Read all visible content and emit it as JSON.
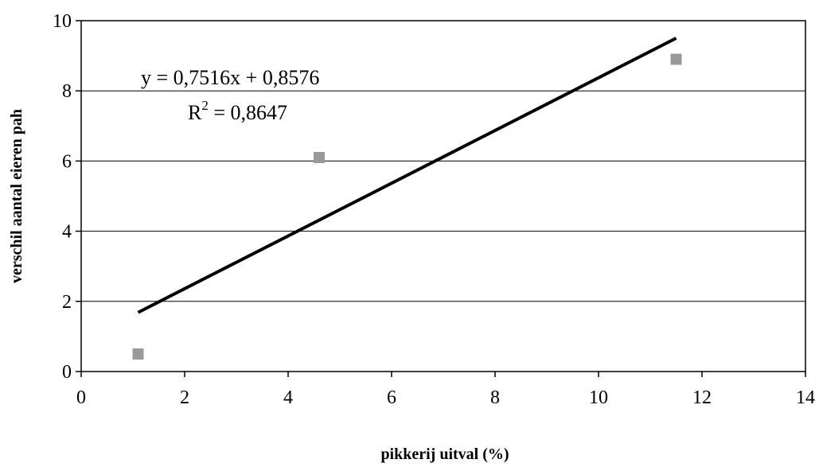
{
  "chart_data": {
    "type": "scatter",
    "title": "",
    "xlabel": "pikkerij uitval (%)",
    "ylabel": "verschil aantal eieren pah",
    "xlim": [
      0,
      14
    ],
    "ylim": [
      0,
      10
    ],
    "x_ticks": [
      "0",
      "2",
      "4",
      "6",
      "8",
      "10",
      "12",
      "14"
    ],
    "y_ticks": [
      "0",
      "2",
      "4",
      "6",
      "8",
      "10"
    ],
    "grid": "horizontal",
    "legend": "none",
    "series": [
      {
        "marker": "square",
        "color": "#999999",
        "points": [
          {
            "x": 1.1,
            "y": 0.5
          },
          {
            "x": 4.6,
            "y": 6.1
          },
          {
            "x": 11.5,
            "y": 8.9
          }
        ]
      }
    ],
    "trendline": {
      "type": "linear",
      "slope": 0.7516,
      "intercept": 0.8576,
      "x_range": [
        1.1,
        11.5
      ],
      "color": "#000000",
      "equation": "y = 0,7516x + 0,8576",
      "r_squared_label": "R",
      "r_squared_sup": "2",
      "r_squared_value": " = 0,8647"
    }
  }
}
